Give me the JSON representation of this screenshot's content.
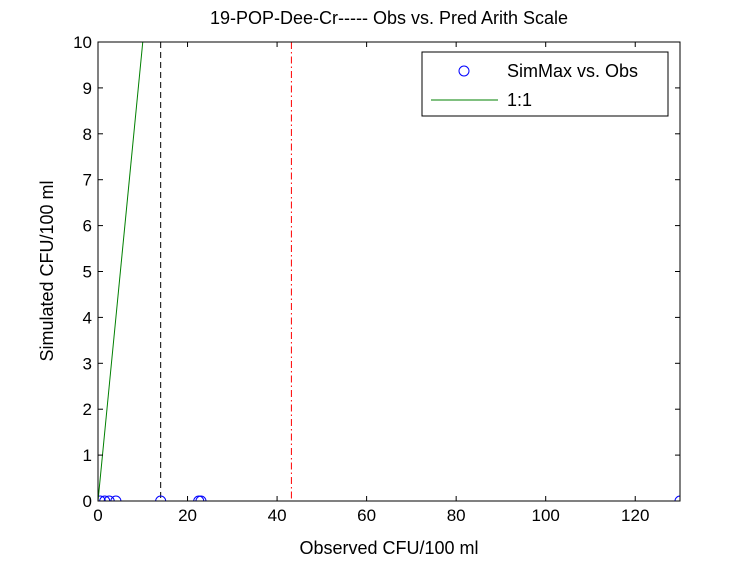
{
  "chart_data": {
    "type": "scatter",
    "title": "19-POP-Dee-Cr----- Obs vs. Pred Arith Scale",
    "xlabel": "Observed CFU/100 ml",
    "ylabel": "Simulated CFU/100 ml",
    "xlim": [
      0,
      130
    ],
    "ylim": [
      0,
      10
    ],
    "xticks": [
      0,
      20,
      40,
      60,
      80,
      100,
      120
    ],
    "yticks": [
      0,
      1,
      2,
      3,
      4,
      5,
      6,
      7,
      8,
      9,
      10
    ],
    "grid": false,
    "legend_position": "top-right",
    "series": [
      {
        "name": "SimMax vs. Obs",
        "kind": "markers",
        "marker": "circle",
        "color": "#0000ff",
        "x": [
          0.5,
          1.5,
          2.5,
          4,
          14,
          22.5,
          23,
          130
        ],
        "y": [
          0,
          0,
          0,
          0,
          0,
          0,
          0,
          0
        ]
      },
      {
        "name": "1:1",
        "kind": "line",
        "color": "#008000",
        "x": [
          0,
          10
        ],
        "y": [
          0,
          10
        ]
      }
    ],
    "reference_lines": [
      {
        "kind": "vertical",
        "x": 14,
        "style": "dashed",
        "color": "#000000"
      },
      {
        "kind": "vertical",
        "x": 43.2,
        "style": "dashdot",
        "color": "#ff0000"
      }
    ]
  }
}
